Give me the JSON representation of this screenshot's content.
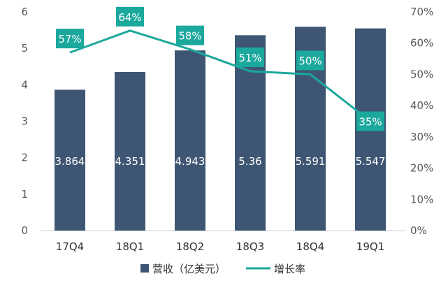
{
  "chart_data": {
    "type": "bar",
    "categories": [
      "17Q4",
      "18Q1",
      "18Q2",
      "18Q3",
      "18Q4",
      "19Q1"
    ],
    "series": [
      {
        "name": "营收（亿美元）",
        "type": "bar",
        "axis": "left",
        "values": [
          3.864,
          4.351,
          4.943,
          5.36,
          5.591,
          5.547
        ],
        "labels": [
          "3.864",
          "4.351",
          "4.943",
          "5.36",
          "5.591",
          "5.547"
        ],
        "color": "#3e5673"
      },
      {
        "name": "增长率",
        "type": "line",
        "axis": "right",
        "values": [
          57,
          64,
          58,
          51,
          50,
          35
        ],
        "labels": [
          "57%",
          "64%",
          "58%",
          "51%",
          "50%",
          "35%"
        ],
        "color": "#1ba89d"
      }
    ],
    "y_left": {
      "min": 0,
      "max": 6,
      "step": 1,
      "tick_labels": [
        "0",
        "1",
        "2",
        "3",
        "4",
        "5",
        "6"
      ]
    },
    "y_right": {
      "min": 0,
      "max": 70,
      "step": 10,
      "tick_labels": [
        "0%",
        "10%",
        "20%",
        "30%",
        "40%",
        "50%",
        "60%",
        "70%"
      ]
    },
    "grid": false,
    "legend_position": "bottom",
    "legend": [
      "营收（亿美元）",
      "增长率"
    ]
  }
}
